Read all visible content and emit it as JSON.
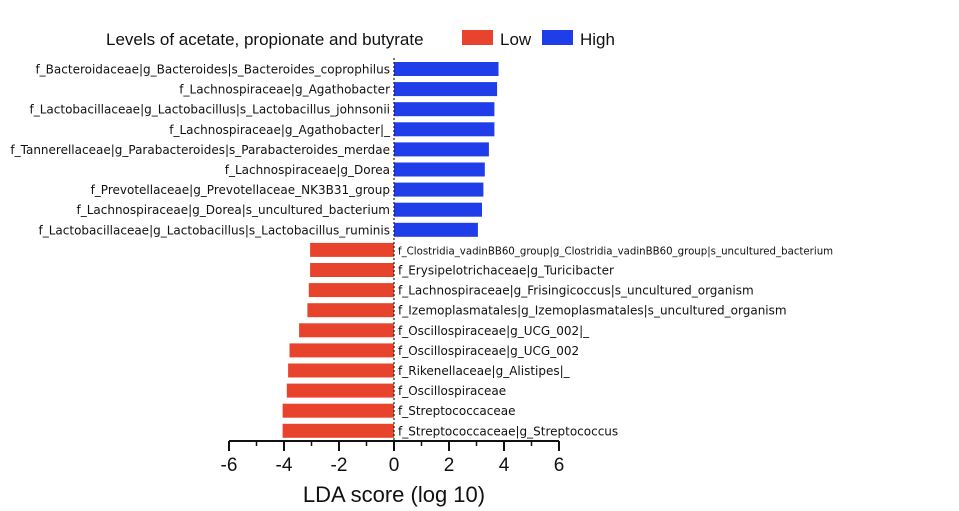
{
  "chart_data": {
    "type": "bar",
    "orientation": "horizontal",
    "legend": {
      "title": "Levels of acetate, propionate and butyrate",
      "position": "top",
      "entries": [
        {
          "name": "Low",
          "color": "#e8442d"
        },
        {
          "name": "High",
          "color": "#1f3de8"
        }
      ]
    },
    "xlabel": "LDA score (log 10)",
    "ylabel": "",
    "xlim": [
      -6,
      6
    ],
    "xticks": [
      "-6",
      "-4",
      "-2",
      "0",
      "2",
      "4",
      "6"
    ],
    "grid": false,
    "bars": [
      {
        "label": "f_Bacteroidaceae|g_Bacteroides|s_Bacteroides_coprophilus",
        "value": 3.8,
        "group": "High"
      },
      {
        "label": "f_Lachnospiraceae|g_Agathobacter",
        "value": 3.75,
        "group": "High"
      },
      {
        "label": "f_Lactobacillaceae|g_Lactobacillus|s_Lactobacillus_johnsonii",
        "value": 3.65,
        "group": "High"
      },
      {
        "label": "f_Lachnospiraceae|g_Agathobacter|_",
        "value": 3.65,
        "group": "High"
      },
      {
        "label": "f_Tannerellaceae|g_Parabacteroides|s_Parabacteroides_merdae",
        "value": 3.45,
        "group": "High"
      },
      {
        "label": "f_Lachnospiraceae|g_Dorea",
        "value": 3.3,
        "group": "High"
      },
      {
        "label": "f_Prevotellaceae|g_Prevotellaceae_NK3B31_group",
        "value": 3.25,
        "group": "High"
      },
      {
        "label": "f_Lachnospiraceae|g_Dorea|s_uncultured_bacterium",
        "value": 3.2,
        "group": "High"
      },
      {
        "label": "f_Lactobacillaceae|g_Lactobacillus|s_Lactobacillus_ruminis",
        "value": 3.05,
        "group": "High"
      },
      {
        "label": "f_Clostridia_vadinBB60_group|g_Clostridia_vadinBB60_group|s_uncultured_bacterium",
        "value": -3.05,
        "group": "Low"
      },
      {
        "label": "f_Erysipelotrichaceae|g_Turicibacter",
        "value": -3.05,
        "group": "Low"
      },
      {
        "label": "f_Lachnospiraceae|g_Frisingicoccus|s_uncultured_organism",
        "value": -3.1,
        "group": "Low"
      },
      {
        "label": "f_Izemoplasmatales|g_Izemoplasmatales|s_uncultured_organism",
        "value": -3.15,
        "group": "Low"
      },
      {
        "label": "f_Oscillospiraceae|g_UCG_002|_",
        "value": -3.45,
        "group": "Low"
      },
      {
        "label": "f_Oscillospiraceae|g_UCG_002",
        "value": -3.8,
        "group": "Low"
      },
      {
        "label": "f_Rikenellaceae|g_Alistipes|_",
        "value": -3.85,
        "group": "Low"
      },
      {
        "label": "f_Oscillospiraceae",
        "value": -3.9,
        "group": "Low"
      },
      {
        "label": "f_Streptococcaceae",
        "value": -4.05,
        "group": "Low"
      },
      {
        "label": "f_Streptococcaceae|g_Streptococcus",
        "value": -4.05,
        "group": "Low"
      }
    ]
  }
}
